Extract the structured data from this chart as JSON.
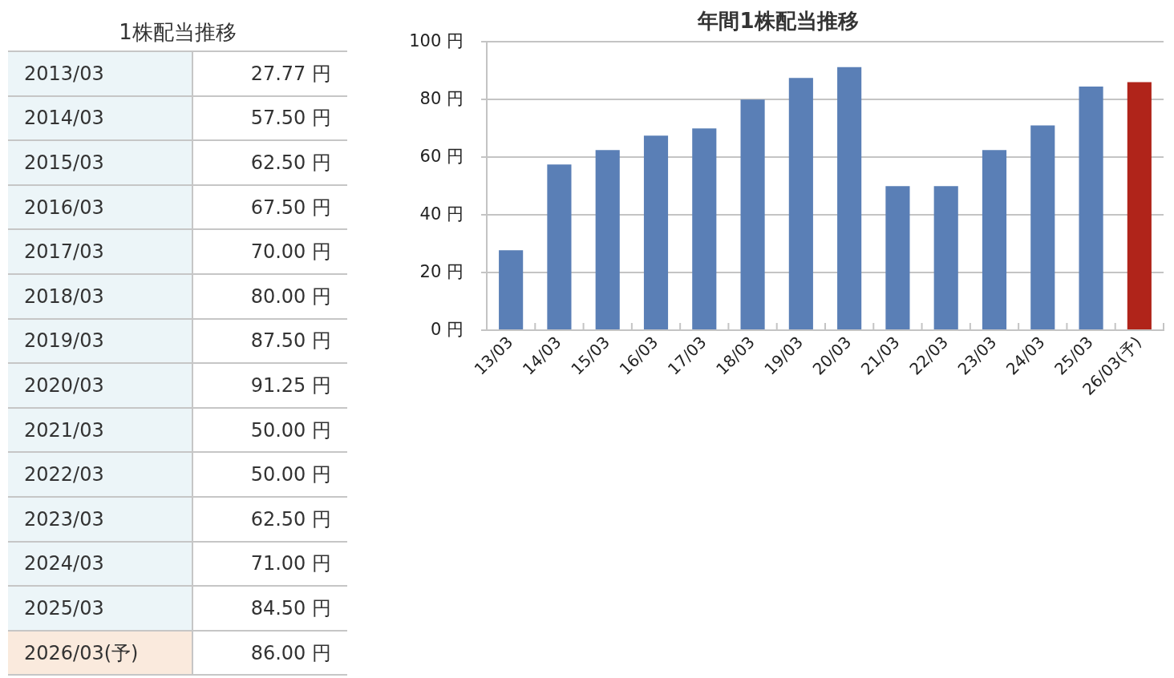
{
  "chart_data": [
    {
      "type": "other",
      "title": "1株配当推移",
      "categories": [
        "2013/03",
        "2014/03",
        "2015/03",
        "2016/03",
        "2017/03",
        "2018/03",
        "2019/03",
        "2020/03",
        "2021/03",
        "2022/03",
        "2023/03",
        "2024/03",
        "2025/03",
        "2026/03(予)"
      ],
      "values": [
        27.77,
        57.5,
        62.5,
        67.5,
        70,
        80,
        87.5,
        91.25,
        50,
        50,
        62.5,
        71,
        84.5,
        86
      ],
      "value_labels": [
        "27.77 円",
        "57.50 円",
        "62.50 円",
        "67.50 円",
        "70.00 円",
        "80.00 円",
        "87.50 円",
        "91.25 円",
        "50.00 円",
        "50.00 円",
        "62.50 円",
        "71.00 円",
        "84.50 円",
        "86.00 円"
      ],
      "colors": [
        "#ecf5f8",
        "#ecf5f8",
        "#ecf5f8",
        "#ecf5f8",
        "#ecf5f8",
        "#ecf5f8",
        "#ecf5f8",
        "#ecf5f8",
        "#ecf5f8",
        "#ecf5f8",
        "#ecf5f8",
        "#ecf5f8",
        "#ecf5f8",
        "#faeadd"
      ]
    },
    {
      "type": "bar",
      "title": "年間1株配当推移",
      "categories": [
        "13/03",
        "14/03",
        "15/03",
        "16/03",
        "17/03",
        "18/03",
        "19/03",
        "20/03",
        "21/03",
        "22/03",
        "23/03",
        "24/03",
        "25/03",
        "26/03(予)"
      ],
      "values": [
        27.77,
        57.5,
        62.5,
        67.5,
        70,
        80,
        87.5,
        91.25,
        50,
        50,
        62.5,
        71,
        84.5,
        86
      ],
      "colors": [
        "#5a7fb6",
        "#5a7fb6",
        "#5a7fb6",
        "#5a7fb6",
        "#5a7fb6",
        "#5a7fb6",
        "#5a7fb6",
        "#5a7fb6",
        "#5a7fb6",
        "#5a7fb6",
        "#5a7fb6",
        "#5a7fb6",
        "#5a7fb6",
        "#b0241a"
      ],
      "ylim": [
        0,
        100
      ],
      "yticks": [
        {
          "value": 0,
          "label": "0 円"
        },
        {
          "value": 20,
          "label": "20 円"
        },
        {
          "value": 40,
          "label": "40 円"
        },
        {
          "value": 60,
          "label": "60 円"
        },
        {
          "value": 80,
          "label": "80 円"
        },
        {
          "value": 100,
          "label": "100 円"
        }
      ],
      "grid": "y"
    }
  ]
}
